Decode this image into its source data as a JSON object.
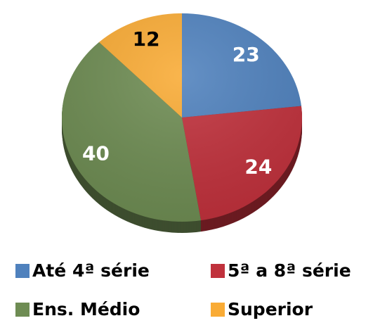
{
  "chart_data": {
    "type": "pie",
    "categories": [
      "Até 4ª série",
      "5ª a 8ª série",
      "Ens. Médio",
      "Superior"
    ],
    "values": [
      23,
      24,
      40,
      12
    ],
    "colors": [
      "#4f81bd",
      "#c0313c",
      "#6e8c53",
      "#f9ab35"
    ],
    "label_colors": [
      "#ffffff",
      "#ffffff",
      "#ffffff",
      "#000000"
    ],
    "legend": "bottom"
  }
}
